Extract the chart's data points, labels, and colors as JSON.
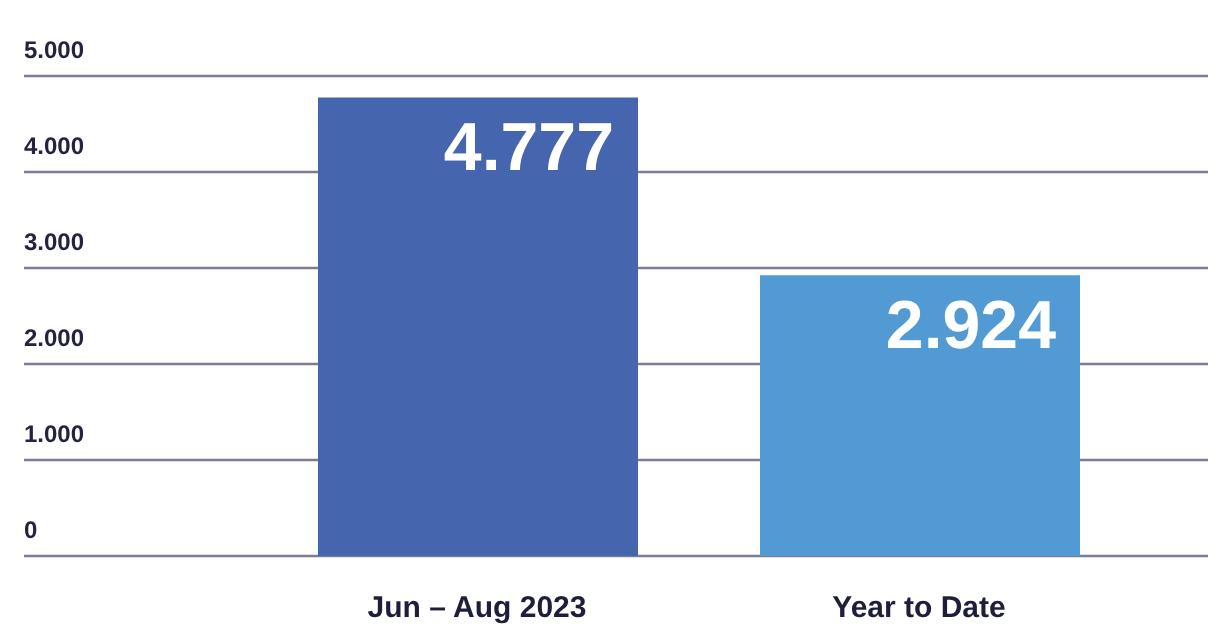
{
  "chart_data": {
    "type": "bar",
    "categories": [
      "Jun – Aug 2023",
      "Year to Date"
    ],
    "values": [
      4777,
      2924
    ],
    "colors": [
      "#4565ae",
      "#519ad4"
    ],
    "value_labels": [
      "4.777",
      "2.924"
    ],
    "ylim": [
      0,
      5000
    ],
    "yticks": [
      0,
      {
        "value": 1000,
        "label": "1.000"
      },
      {
        "value": 2000,
        "label": "2.000"
      },
      {
        "value": 3000,
        "label": "3.000"
      },
      {
        "value": 4000,
        "label": "4.000"
      },
      {
        "value": 5000,
        "label": "5.000"
      }
    ],
    "grid": "y"
  }
}
